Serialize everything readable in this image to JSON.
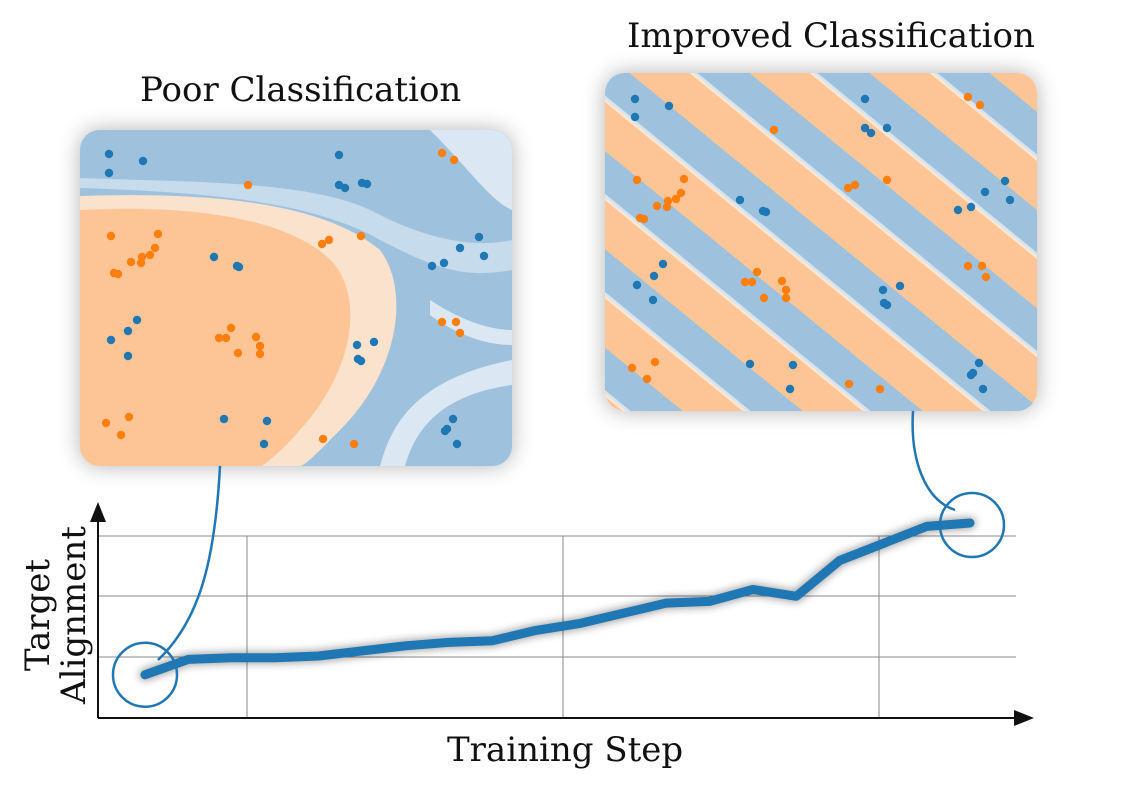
{
  "panels": {
    "poor": {
      "title": "Poor Classification"
    },
    "improved": {
      "title": "Improved Classification"
    }
  },
  "colors": {
    "class_a": "#1f77b4",
    "class_b": "#ff7f0e",
    "region_a": "#9ec2de",
    "region_b": "#fdc596",
    "line": "#1f77b4",
    "grid": "#8a8a8a"
  },
  "chart_data": {
    "type": "line",
    "xlabel": "Training Step",
    "ylabel_lines": [
      "Target",
      "Alignment"
    ],
    "grid": true,
    "ticks_labeled": false,
    "series": [
      {
        "values": [
          0.06,
          0.15,
          0.16,
          0.16,
          0.17,
          0.2,
          0.23,
          0.25,
          0.26,
          0.32,
          0.36,
          0.42,
          0.48,
          0.49,
          0.56,
          0.52,
          0.73,
          0.83,
          0.93,
          0.95
        ]
      }
    ],
    "x": [
      0,
      1,
      2,
      3,
      4,
      5,
      6,
      7,
      8,
      9,
      10,
      11,
      12,
      13,
      14,
      15,
      16,
      17,
      18,
      19
    ],
    "highlighted_points": [
      "first",
      "last"
    ]
  }
}
